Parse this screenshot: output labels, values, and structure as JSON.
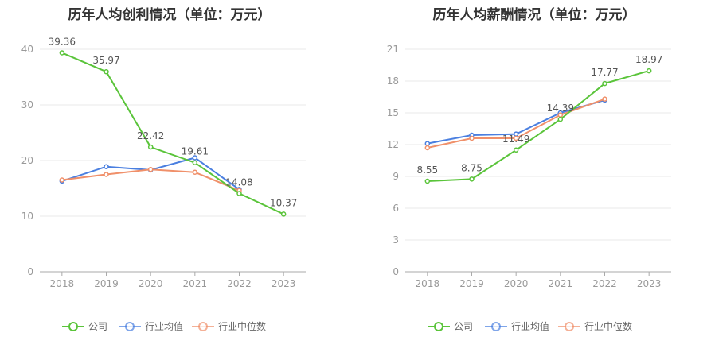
{
  "chart_data": [
    {
      "type": "line",
      "title": "历年人均创利情况（单位：万元）",
      "categories": [
        "2018",
        "2019",
        "2020",
        "2021",
        "2022",
        "2023"
      ],
      "ylim": [
        0,
        40
      ],
      "yticks": [
        "0",
        "10",
        "20",
        "30",
        "40"
      ],
      "grid": true,
      "legend_position": "bottom",
      "series": [
        {
          "name": "公司",
          "color": "#5ac43a",
          "values": [
            39.36,
            35.97,
            22.42,
            19.61,
            14.08,
            10.37
          ],
          "labels": [
            "39.36",
            "35.97",
            "22.42",
            "19.61",
            "14.08",
            "10.37"
          ]
        },
        {
          "name": "行业均值",
          "color": "#4a7fe0",
          "values": [
            16.3,
            18.9,
            18.3,
            20.5,
            14.8,
            null
          ]
        },
        {
          "name": "行业中位数",
          "color": "#f0906a",
          "values": [
            16.5,
            17.5,
            18.4,
            17.9,
            14.6,
            null
          ]
        }
      ]
    },
    {
      "type": "line",
      "title": "历年人均薪酬情况（单位：万元）",
      "categories": [
        "2018",
        "2019",
        "2020",
        "2021",
        "2022",
        "2023"
      ],
      "ylim": [
        0,
        21
      ],
      "yticks": [
        "0",
        "3",
        "6",
        "9",
        "12",
        "15",
        "18",
        "21"
      ],
      "grid": true,
      "legend_position": "bottom",
      "series": [
        {
          "name": "公司",
          "color": "#5ac43a",
          "values": [
            8.55,
            8.75,
            11.49,
            14.39,
            17.77,
            18.97
          ],
          "labels": [
            "8.55",
            "8.75",
            "11.49",
            "14.39",
            "17.77",
            "18.97"
          ]
        },
        {
          "name": "行业均值",
          "color": "#4a7fe0",
          "values": [
            12.1,
            12.9,
            13.0,
            15.0,
            16.2,
            null
          ]
        },
        {
          "name": "行业中位数",
          "color": "#f0906a",
          "values": [
            11.7,
            12.6,
            12.6,
            14.8,
            16.3,
            null
          ]
        }
      ]
    }
  ]
}
